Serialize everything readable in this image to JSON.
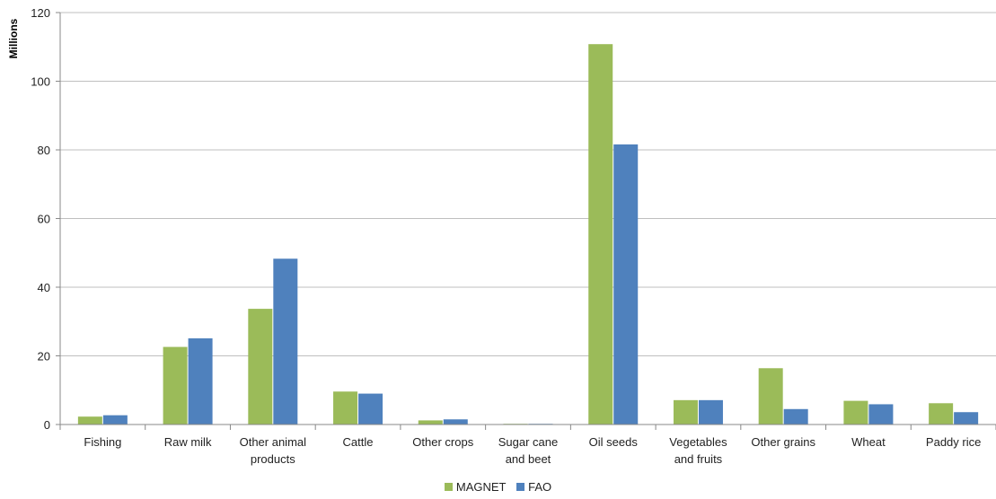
{
  "chart_data": {
    "type": "bar",
    "title": "",
    "xlabel": "",
    "ylabel": "Millions",
    "ylim": [
      0,
      120
    ],
    "yticks": [
      0,
      20,
      40,
      60,
      80,
      100,
      120
    ],
    "grid": true,
    "legend_position": "bottom",
    "categories": [
      [
        "Fishing"
      ],
      [
        "Raw milk"
      ],
      [
        "Other animal",
        "products"
      ],
      [
        "Cattle"
      ],
      [
        "Other crops"
      ],
      [
        "Sugar cane",
        "and beet"
      ],
      [
        "Oil seeds"
      ],
      [
        "Vegetables",
        "and fruits"
      ],
      [
        "Other grains"
      ],
      [
        "Wheat"
      ],
      [
        "Paddy rice"
      ]
    ],
    "series": [
      {
        "name": "MAGNET",
        "color": "#9BBB59",
        "values": [
          2.3,
          22.6,
          33.7,
          9.6,
          1.2,
          0.2,
          110.8,
          7.1,
          16.4,
          6.9,
          6.2
        ]
      },
      {
        "name": "FAO",
        "color": "#4F81BD",
        "values": [
          2.7,
          25.1,
          48.3,
          9.0,
          1.5,
          0.2,
          81.6,
          7.1,
          4.5,
          5.9,
          3.6
        ]
      }
    ]
  }
}
